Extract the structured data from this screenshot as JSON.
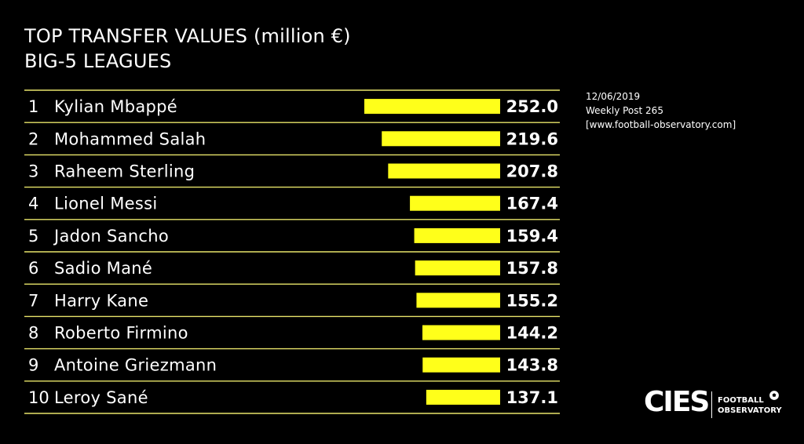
{
  "chart_data": {
    "type": "bar",
    "orientation": "horizontal",
    "title": "TOP TRANSFER VALUES (million €)",
    "subtitle": "BIG-5 LEAGUES",
    "ranks": [
      "1",
      "2",
      "3",
      "4",
      "5",
      "6",
      "7",
      "8",
      "9",
      "10"
    ],
    "categories": [
      "Kylian Mbappé",
      "Mohammed Salah",
      "Raheem Sterling",
      "Lionel Messi",
      "Jadon Sancho",
      "Sadio Mané",
      "Harry Kane",
      "Roberto Firmino",
      "Antoine Griezmann",
      "Leroy Sané"
    ],
    "values": [
      252.0,
      219.6,
      207.8,
      167.4,
      159.4,
      157.8,
      155.2,
      144.2,
      143.8,
      137.1
    ],
    "value_labels": [
      "252.0",
      "219.6",
      "207.8",
      "167.4",
      "159.4",
      "157.8",
      "155.2",
      "144.2",
      "143.8",
      "137.1"
    ],
    "xlim": [
      0,
      252.0
    ],
    "bar_color": "#FFFF1A",
    "rule_color": "#E8E46A",
    "grid": false
  },
  "meta": {
    "date": "12/06/2019",
    "post": "Weekly Post 265",
    "website": "[www.football-observatory.com]"
  },
  "logo": {
    "name": "CIES",
    "line1": "FOOTBALL",
    "line2": "OBSERVATORY"
  }
}
